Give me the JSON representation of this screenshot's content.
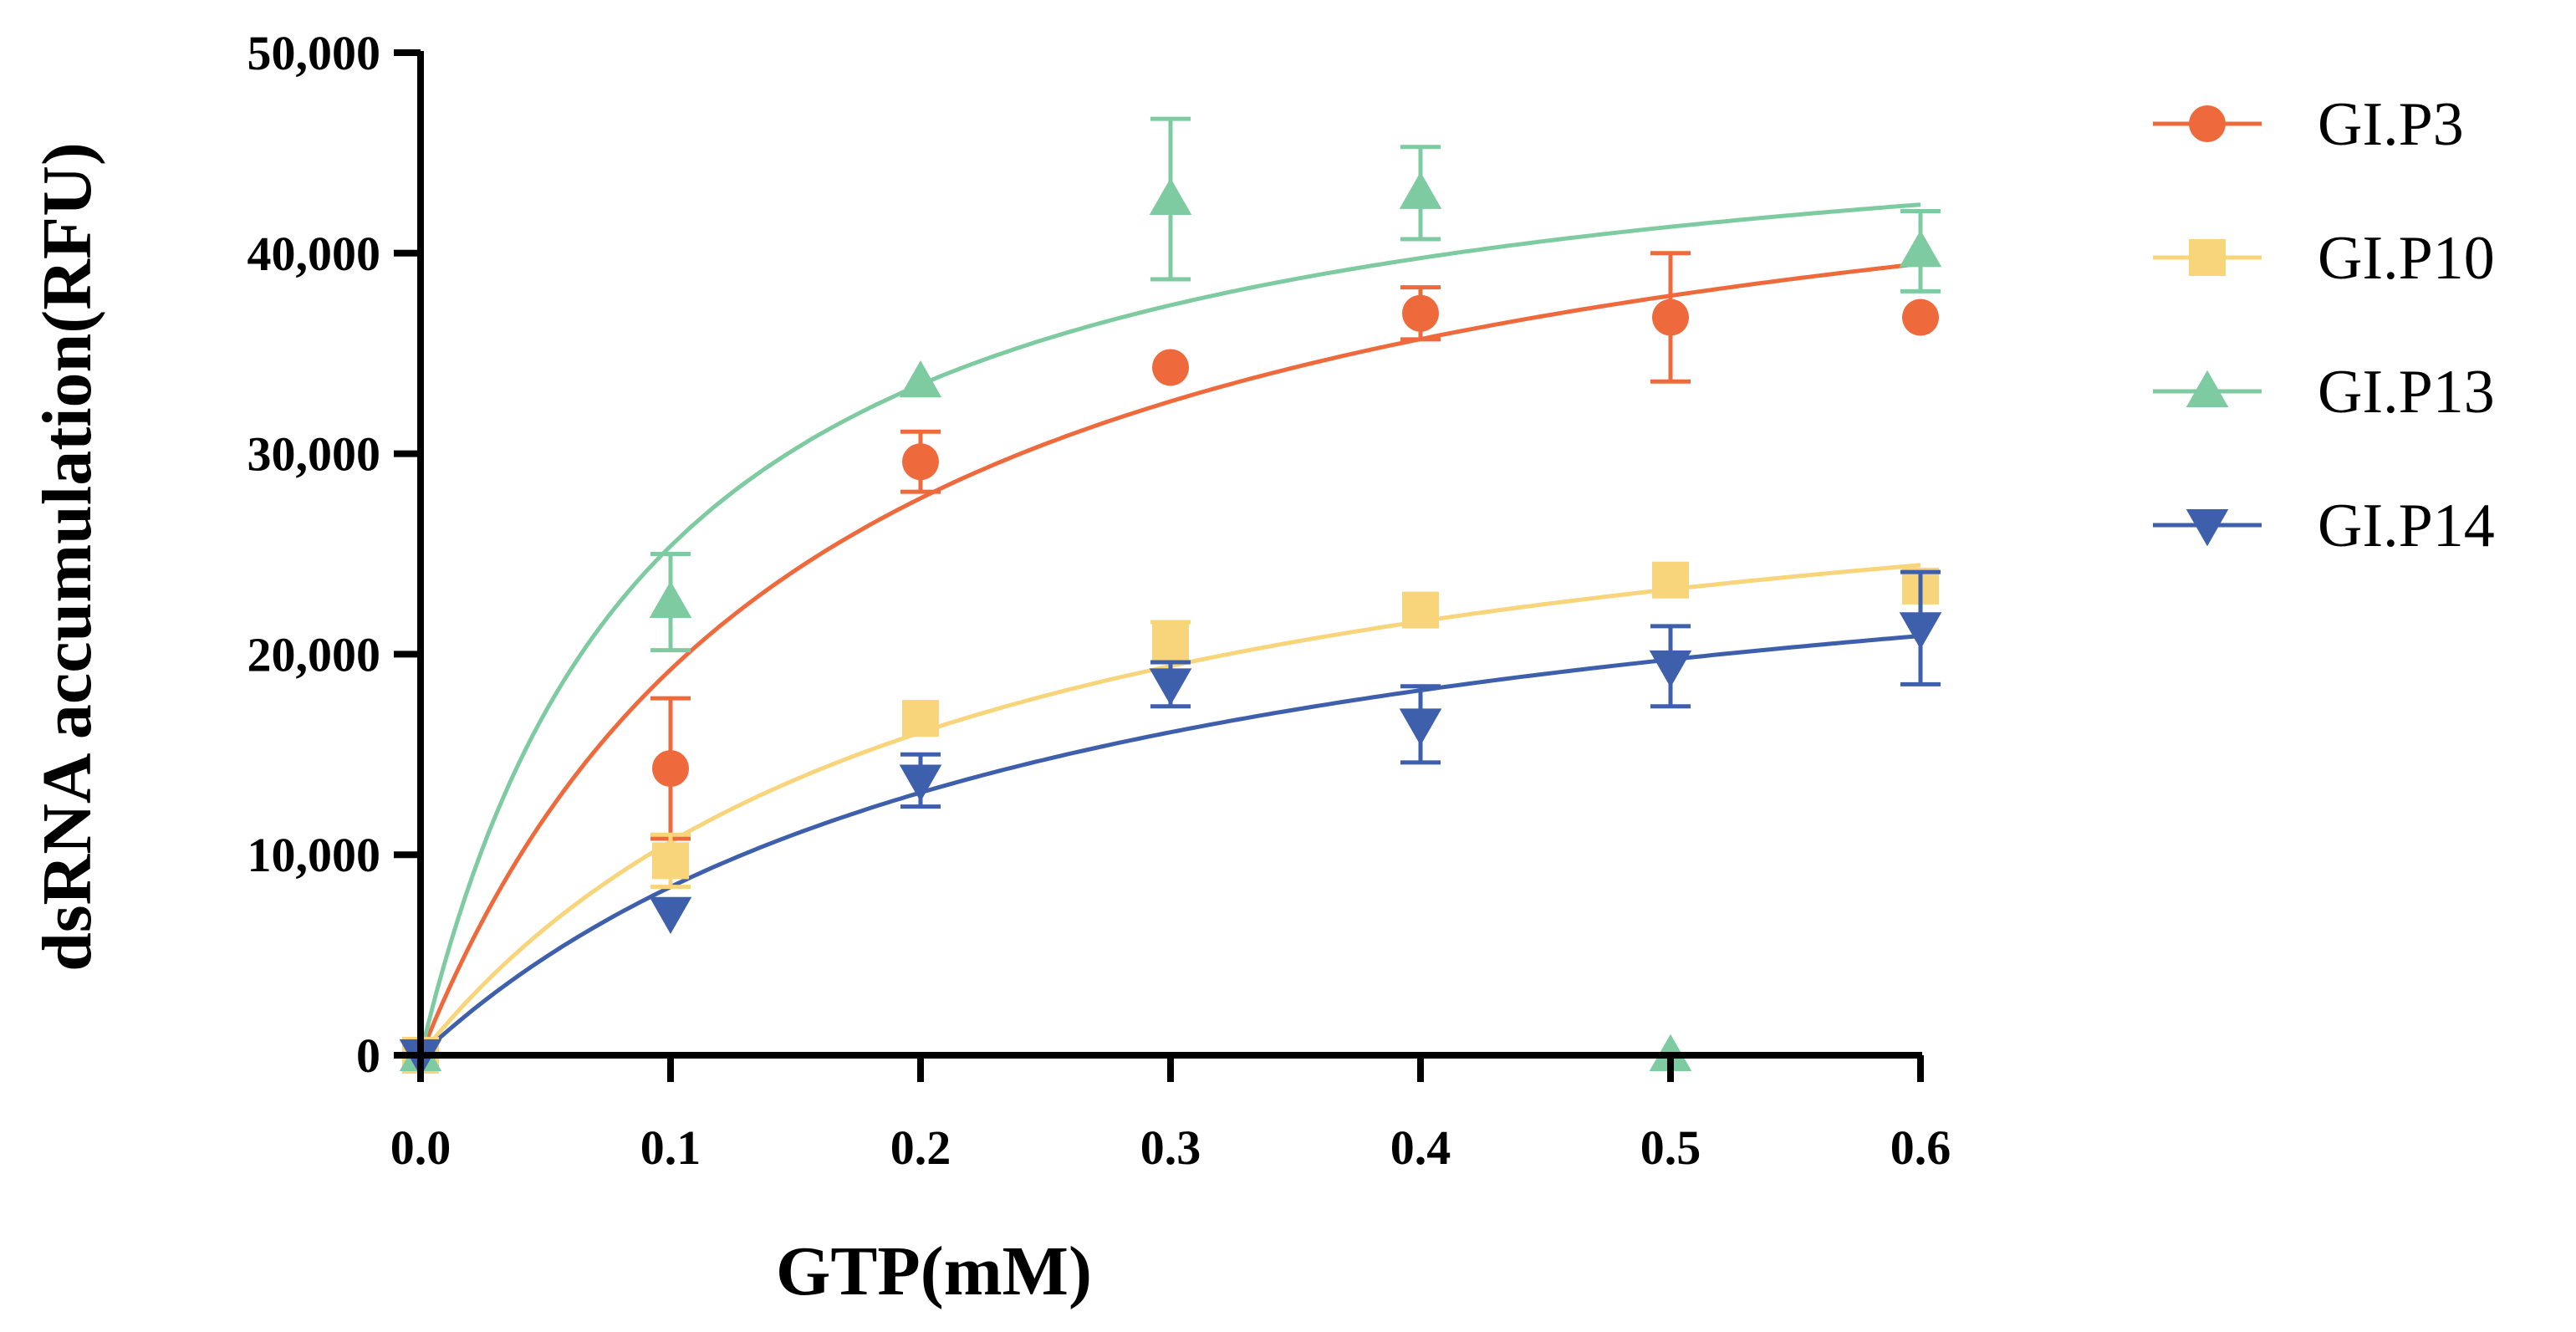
{
  "chart_data": {
    "type": "scatter",
    "xlabel": "GTP(mM)",
    "ylabel": "dsRNA accumulation(RFU)",
    "xlim": [
      0,
      0.6
    ],
    "ylim": [
      0,
      50000
    ],
    "x_ticks": [
      "0.0",
      "0.1",
      "0.2",
      "0.3",
      "0.4",
      "0.5",
      "0.6"
    ],
    "y_ticks": [
      "0",
      "10,000",
      "20,000",
      "30,000",
      "40,000",
      "50,000"
    ],
    "grid": false,
    "legend_position": "right",
    "x": [
      0,
      0.1,
      0.2,
      0.3,
      0.4,
      0.5,
      0.6
    ],
    "series": [
      {
        "name": "GI.P3",
        "color": "#EE6A3C",
        "marker": "circle",
        "values": [
          0,
          14300,
          29600,
          34300,
          37000,
          36800,
          36800
        ],
        "errors": [
          0,
          3500,
          1500,
          0,
          1300,
          3200,
          0
        ],
        "fit": {
          "vmax": 50000,
          "km": 0.16
        }
      },
      {
        "name": "GI.P10",
        "color": "#F8D47A",
        "marker": "square",
        "values": [
          0,
          9700,
          16800,
          20600,
          22200,
          23700,
          23400
        ],
        "errors": [
          0,
          1300,
          0,
          1000,
          0,
          0,
          0
        ],
        "fit": {
          "vmax": 33000,
          "km": 0.21
        }
      },
      {
        "name": "GI.P13",
        "color": "#7ECBA1",
        "marker": "triangle-up",
        "values": [
          0,
          22600,
          33600,
          42700,
          43000,
          0,
          40100
        ],
        "errors": [
          0,
          2400,
          0,
          4000,
          2300,
          0,
          2000
        ],
        "fit": {
          "vmax": 49000,
          "km": 0.093
        }
      },
      {
        "name": "GI.P14",
        "color": "#3E5FAB",
        "marker": "triangle-down",
        "values": [
          0,
          7100,
          13700,
          18500,
          16500,
          19400,
          21300
        ],
        "errors": [
          0,
          0,
          1300,
          1100,
          1900,
          2000,
          2800
        ],
        "fit": {
          "vmax": 29800,
          "km": 0.255
        }
      }
    ]
  }
}
